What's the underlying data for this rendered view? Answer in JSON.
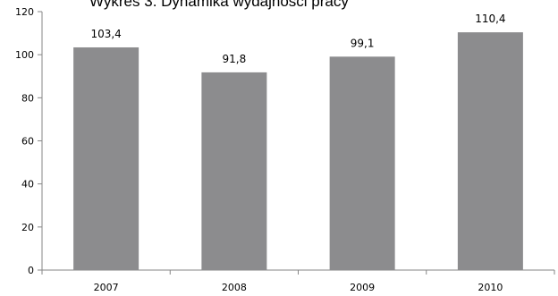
{
  "chart_data": {
    "type": "bar",
    "title": "Wykres 3. Dynamika wydajności pracy",
    "categories": [
      "2007",
      "2008",
      "2009",
      "2010"
    ],
    "values": [
      103.4,
      91.8,
      99.1,
      110.4
    ],
    "data_labels": [
      "103,4",
      "91,8",
      "99,1",
      "110,4"
    ],
    "yticks": [
      0,
      20,
      40,
      60,
      80,
      100,
      120
    ],
    "ylim": [
      0,
      120
    ],
    "xlabel": "",
    "ylabel": "",
    "grid": false,
    "legend": "none",
    "bar_color": "#8c8c8e"
  }
}
